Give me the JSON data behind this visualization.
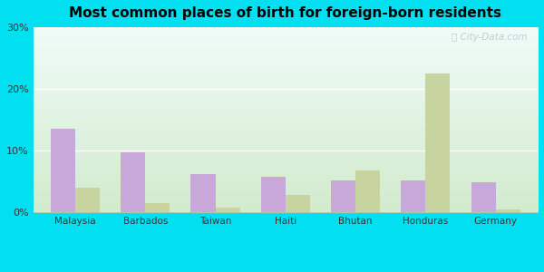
{
  "title": "Most common places of birth for foreign-born residents",
  "categories": [
    "Malaysia",
    "Barbados",
    "Taiwan",
    "Haiti",
    "Bhutan",
    "Honduras",
    "Germany"
  ],
  "zip_values": [
    13.5,
    9.7,
    6.2,
    5.8,
    5.2,
    5.1,
    4.9
  ],
  "sc_values": [
    4.0,
    1.5,
    0.8,
    2.8,
    6.8,
    22.5,
    0.5
  ],
  "zip_color": "#c8a8d8",
  "sc_color": "#c8d4a0",
  "background_outer": "#00e0f0",
  "background_inner_top": "#f0faf8",
  "background_inner_bottom": "#d8f0d0",
  "ylim": [
    0,
    30
  ],
  "yticks": [
    0,
    10,
    20,
    30
  ],
  "ytick_labels": [
    "0%",
    "10%",
    "20%",
    "30%"
  ],
  "bar_width": 0.35,
  "watermark": "ⓘ City-Data.com",
  "grid_color": "#ccddcc",
  "title_fontsize": 11
}
